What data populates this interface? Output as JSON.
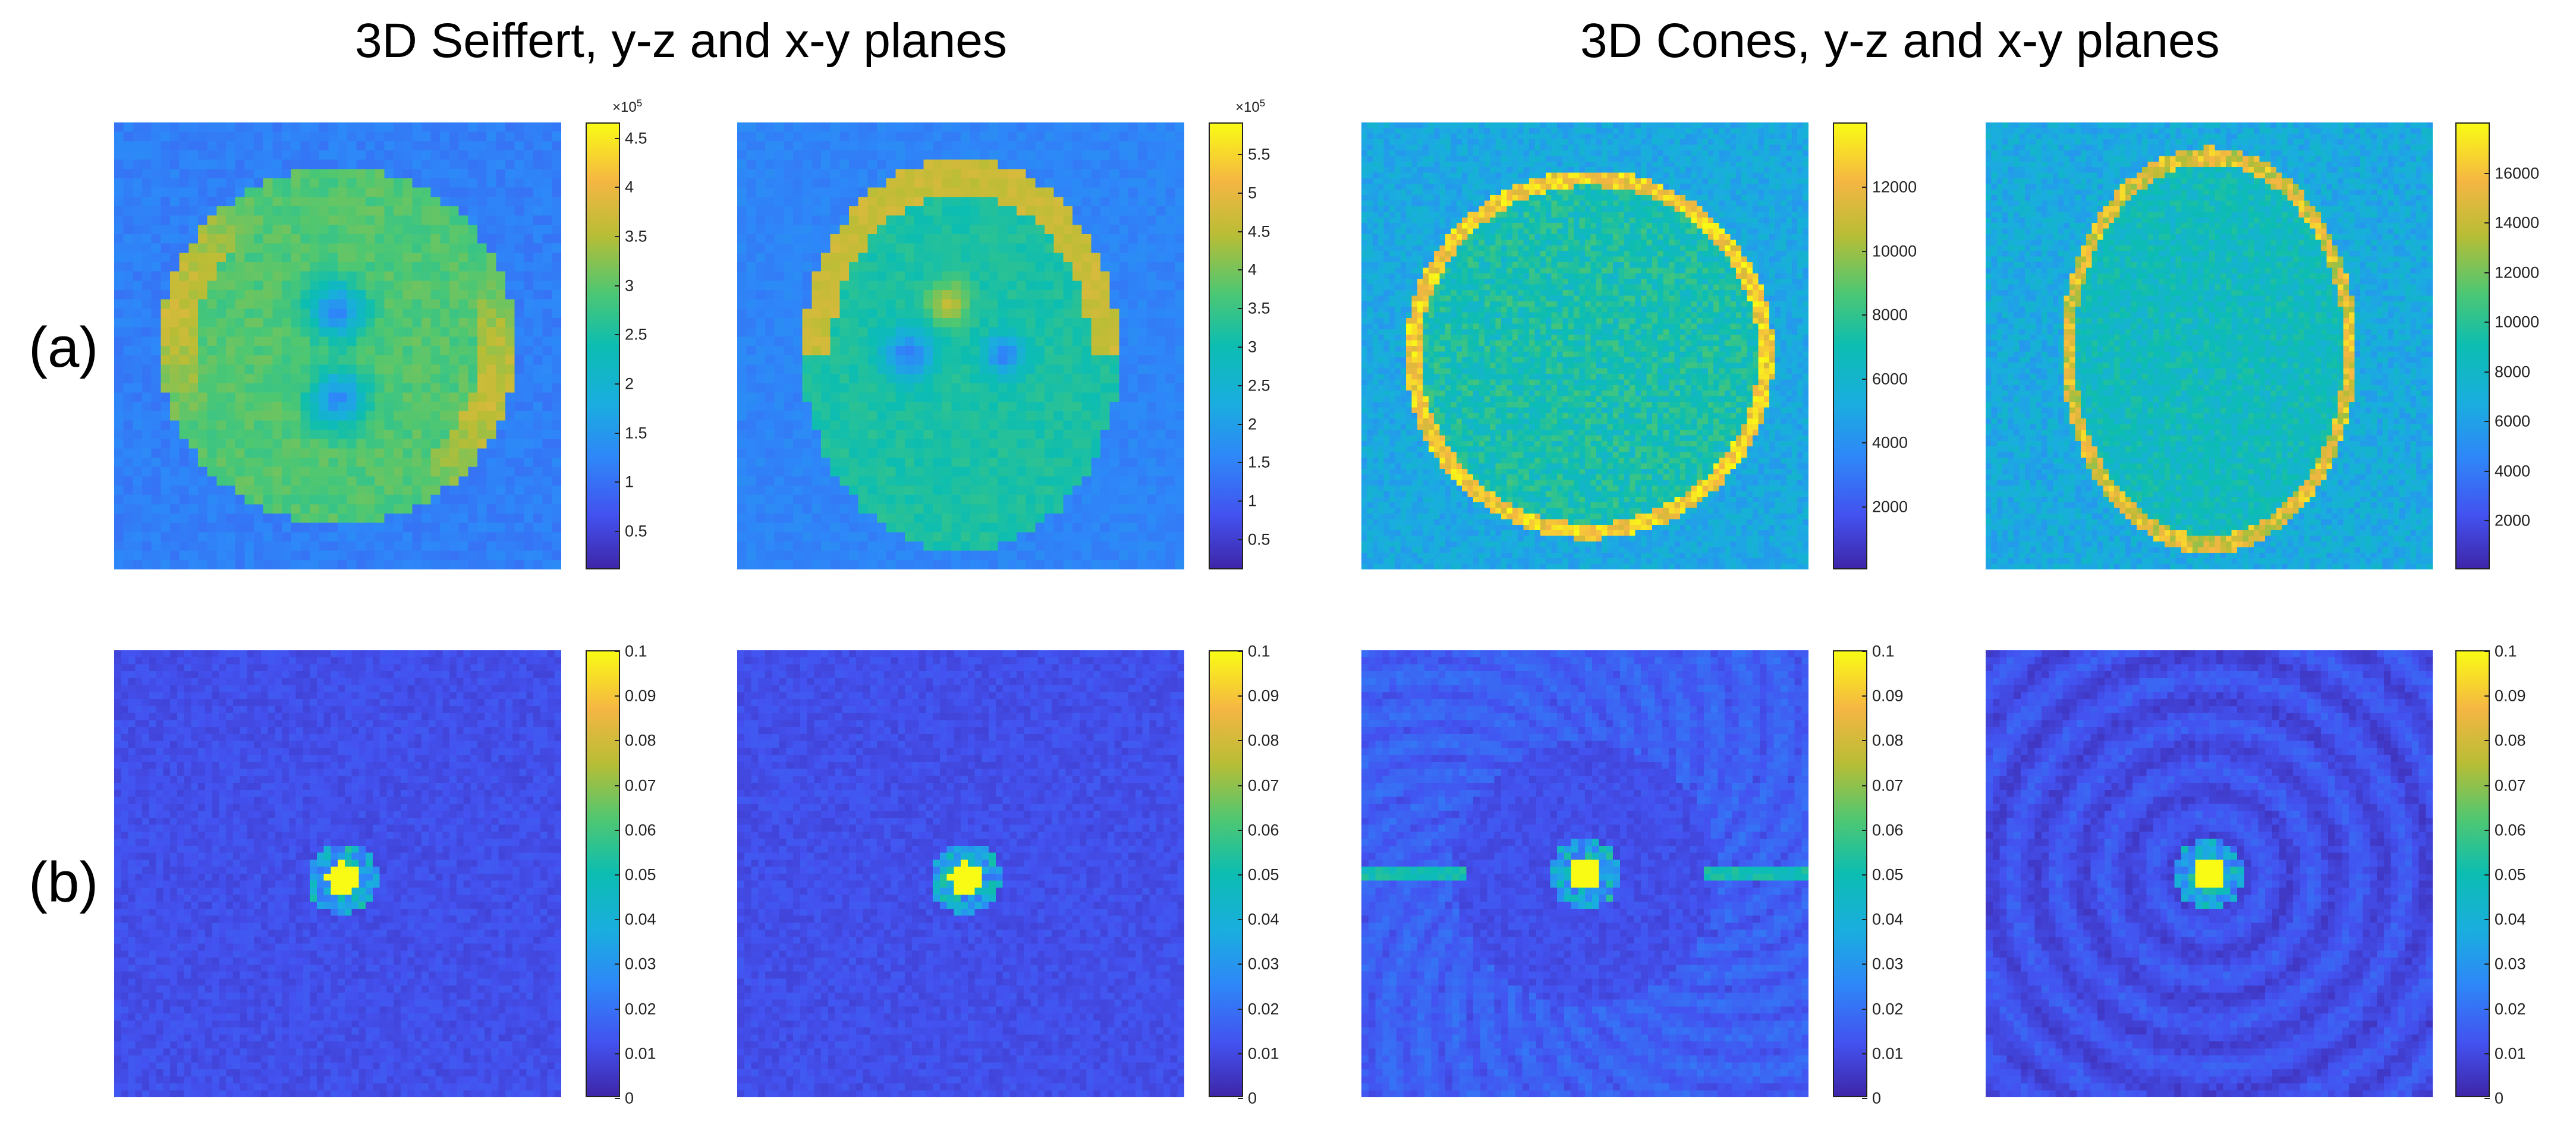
{
  "titles": {
    "left": "3D Seiffert, y-z and x-y planes",
    "right": "3D Cones, y-z and x-y planes"
  },
  "row_labels": {
    "a": "(a)",
    "b": "(b)"
  },
  "colormap": "parula",
  "colorbars": [
    {
      "id": "a1",
      "multiplier_base": "×10",
      "multiplier_exp": "5",
      "range": [
        0.1,
        4.65
      ],
      "ticks": [
        [
          "0.5",
          0.5
        ],
        [
          "1",
          1
        ],
        [
          "1.5",
          1.5
        ],
        [
          "2",
          2
        ],
        [
          "2.5",
          2.5
        ],
        [
          "3",
          3
        ],
        [
          "3.5",
          3.5
        ],
        [
          "4",
          4
        ],
        [
          "4.5",
          4.5
        ]
      ]
    },
    {
      "id": "a2",
      "multiplier_base": "×10",
      "multiplier_exp": "5",
      "range": [
        0.1,
        5.9
      ],
      "ticks": [
        [
          "0.5",
          0.5
        ],
        [
          "1",
          1
        ],
        [
          "1.5",
          1.5
        ],
        [
          "2",
          2
        ],
        [
          "2.5",
          2.5
        ],
        [
          "3",
          3
        ],
        [
          "3.5",
          3.5
        ],
        [
          "4",
          4
        ],
        [
          "4.5",
          4.5
        ],
        [
          "5",
          5
        ],
        [
          "5.5",
          5.5
        ]
      ]
    },
    {
      "id": "a3",
      "range": [
        0,
        14000
      ],
      "ticks": [
        [
          "2000",
          2000
        ],
        [
          "4000",
          4000
        ],
        [
          "6000",
          6000
        ],
        [
          "8000",
          8000
        ],
        [
          "10000",
          10000
        ],
        [
          "12000",
          12000
        ]
      ]
    },
    {
      "id": "a4",
      "range": [
        0,
        18000
      ],
      "ticks": [
        [
          "2000",
          2000
        ],
        [
          "4000",
          4000
        ],
        [
          "6000",
          6000
        ],
        [
          "8000",
          8000
        ],
        [
          "10000",
          10000
        ],
        [
          "12000",
          12000
        ],
        [
          "14000",
          14000
        ],
        [
          "16000",
          16000
        ]
      ]
    },
    {
      "id": "b1",
      "range": [
        0,
        0.1
      ],
      "ticks": [
        [
          "0",
          0
        ],
        [
          "0.01",
          0.01
        ],
        [
          "0.02",
          0.02
        ],
        [
          "0.03",
          0.03
        ],
        [
          "0.04",
          0.04
        ],
        [
          "0.05",
          0.05
        ],
        [
          "0.06",
          0.06
        ],
        [
          "0.07",
          0.07
        ],
        [
          "0.08",
          0.08
        ],
        [
          "0.09",
          0.09
        ],
        [
          "0.1",
          0.1
        ]
      ]
    },
    {
      "id": "b2",
      "range": [
        0,
        0.1
      ],
      "ticks": [
        [
          "0",
          0
        ],
        [
          "0.01",
          0.01
        ],
        [
          "0.02",
          0.02
        ],
        [
          "0.03",
          0.03
        ],
        [
          "0.04",
          0.04
        ],
        [
          "0.05",
          0.05
        ],
        [
          "0.06",
          0.06
        ],
        [
          "0.07",
          0.07
        ],
        [
          "0.08",
          0.08
        ],
        [
          "0.09",
          0.09
        ],
        [
          "0.1",
          0.1
        ]
      ]
    },
    {
      "id": "b3",
      "range": [
        0,
        0.1
      ],
      "ticks": [
        [
          "0",
          0
        ],
        [
          "0.01",
          0.01
        ],
        [
          "0.02",
          0.02
        ],
        [
          "0.03",
          0.03
        ],
        [
          "0.04",
          0.04
        ],
        [
          "0.05",
          0.05
        ],
        [
          "0.06",
          0.06
        ],
        [
          "0.07",
          0.07
        ],
        [
          "0.08",
          0.08
        ],
        [
          "0.09",
          0.09
        ],
        [
          "0.1",
          0.1
        ]
      ]
    },
    {
      "id": "b4",
      "range": [
        0,
        0.1
      ],
      "ticks": [
        [
          "0",
          0
        ],
        [
          "0.01",
          0.01
        ],
        [
          "0.02",
          0.02
        ],
        [
          "0.03",
          0.03
        ],
        [
          "0.04",
          0.04
        ],
        [
          "0.05",
          0.05
        ],
        [
          "0.06",
          0.06
        ],
        [
          "0.07",
          0.07
        ],
        [
          "0.08",
          0.08
        ],
        [
          "0.09",
          0.09
        ],
        [
          "0.1",
          0.1
        ]
      ]
    }
  ]
}
